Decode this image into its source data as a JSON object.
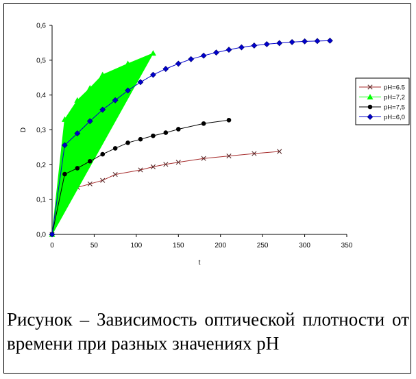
{
  "chart_data": {
    "type": "line",
    "xlabel": "t",
    "ylabel": "D",
    "xlim": [
      0,
      350
    ],
    "ylim": [
      0,
      0.6
    ],
    "x_ticks": [
      "0",
      "50",
      "100",
      "150",
      "200",
      "250",
      "300",
      "350"
    ],
    "y_ticks": [
      "0,0",
      "0,1",
      "0,2",
      "0,3",
      "0,4",
      "0,5",
      "0,6"
    ],
    "grid": false,
    "legend_position": "right",
    "series": [
      {
        "name": "pH=6.5",
        "color": "#a52a2a",
        "marker": "x",
        "x": [
          0,
          15,
          30,
          45,
          60,
          75,
          105,
          120,
          135,
          150,
          180,
          210,
          240,
          270
        ],
        "y": [
          0,
          0.122,
          0.135,
          0.145,
          0.155,
          0.172,
          0.185,
          0.194,
          0.201,
          0.207,
          0.218,
          0.225,
          0.232,
          0.238
        ]
      },
      {
        "name": "pH=7,2",
        "color": "#00ff00",
        "marker": "triangle",
        "filled": true,
        "x": [
          0,
          15,
          30,
          45,
          60,
          90,
          120
        ],
        "y": [
          0,
          0.33,
          0.385,
          0.42,
          0.458,
          0.49,
          0.52
        ]
      },
      {
        "name": "pH=7,5",
        "color": "#000000",
        "marker": "circle",
        "x": [
          0,
          15,
          30,
          45,
          60,
          75,
          90,
          105,
          120,
          135,
          150,
          180,
          210
        ],
        "y": [
          0,
          0.173,
          0.19,
          0.21,
          0.23,
          0.247,
          0.263,
          0.273,
          0.283,
          0.292,
          0.302,
          0.318,
          0.328
        ]
      },
      {
        "name": "pH=6,0",
        "color": "#0000cc",
        "marker": "diamond",
        "x": [
          0,
          15,
          30,
          45,
          60,
          75,
          90,
          105,
          120,
          135,
          150,
          165,
          180,
          195,
          210,
          225,
          240,
          255,
          270,
          285,
          300,
          315,
          330
        ],
        "y": [
          0,
          0.256,
          0.29,
          0.325,
          0.358,
          0.385,
          0.413,
          0.437,
          0.458,
          0.475,
          0.49,
          0.503,
          0.513,
          0.522,
          0.53,
          0.537,
          0.542,
          0.546,
          0.549,
          0.552,
          0.554,
          0.555,
          0.556
        ]
      }
    ]
  },
  "caption": {
    "text": "Рисунок – Зависимость оптической плотности от времени при разных значениях pH"
  }
}
